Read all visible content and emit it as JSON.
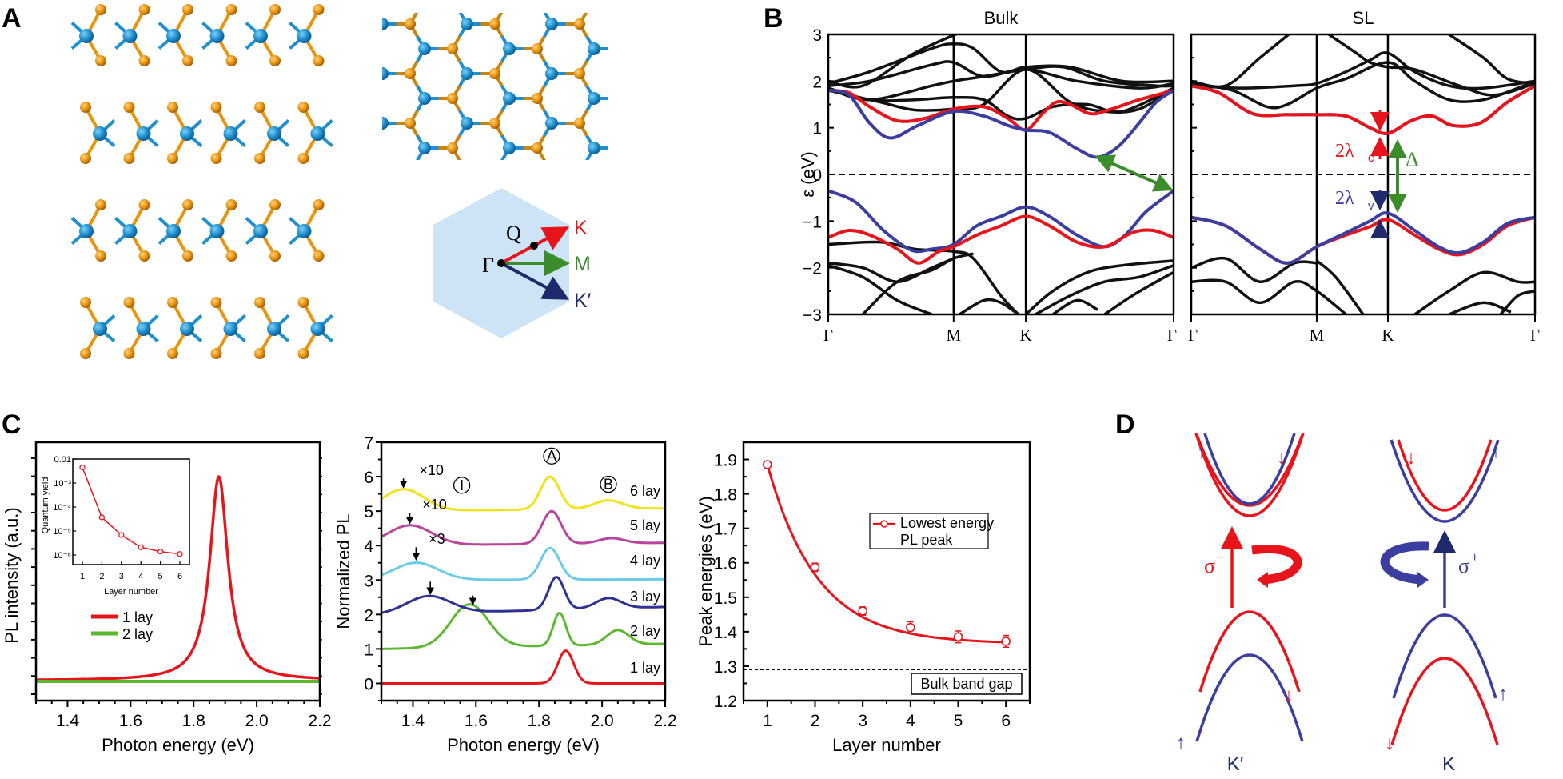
{
  "panel_labels": {
    "a": "A",
    "b": "B",
    "c": "C",
    "d": "D"
  },
  "panel_a": {
    "side_view_layers": 4,
    "colors": {
      "metal": "#1f8fcf",
      "chalcogen": "#e8940f",
      "bz_fill": "#cde3f6"
    },
    "bz": {
      "gamma": "Γ",
      "q": "Q",
      "k": "K",
      "m": "M",
      "kprime": "K′",
      "colors": {
        "k": "#e8141c",
        "m": "#3b8c2a",
        "kprime": "#1e2a6b"
      }
    }
  },
  "chart_data": [
    {
      "id": "band-bulk",
      "type": "line",
      "title": "Bulk",
      "ylabel": "ε (eV)",
      "xlabel": "",
      "ylim": [
        -3,
        3
      ],
      "yticks": [
        "3",
        "2",
        "1",
        "0",
        "−1",
        "−2",
        "−3"
      ],
      "xticks": [
        "Γ",
        "M",
        "K",
        "Γ"
      ],
      "kpath_fraction": [
        0,
        0.363,
        0.572,
        1
      ],
      "fermi_level": 0,
      "series": [
        {
          "name": "conduction-spin-red",
          "color": "#e8141c",
          "x": [
            0,
            0.06,
            0.12,
            0.2,
            0.28,
            0.363,
            0.45,
            0.52,
            0.572,
            0.62,
            0.66,
            0.7,
            0.76,
            0.82,
            0.9,
            1
          ],
          "y": [
            1.8,
            1.75,
            1.45,
            1.15,
            1.2,
            1.4,
            1.45,
            1.2,
            0.95,
            1.3,
            1.55,
            1.5,
            1.3,
            1.4,
            1.6,
            1.8
          ]
        },
        {
          "name": "conduction-spin-blue",
          "color": "#3b3ea0",
          "x": [
            0,
            0.06,
            0.12,
            0.18,
            0.26,
            0.363,
            0.45,
            0.52,
            0.572,
            0.64,
            0.72,
            0.78,
            0.84,
            0.9,
            0.95,
            1
          ],
          "y": [
            1.8,
            1.7,
            1.1,
            0.78,
            1.05,
            1.35,
            1.25,
            1.05,
            0.95,
            0.9,
            0.55,
            0.37,
            0.6,
            1.1,
            1.55,
            1.8
          ]
        },
        {
          "name": "valence-spin-blue",
          "color": "#3b3ea0",
          "x": [
            0,
            0.08,
            0.16,
            0.24,
            0.3,
            0.363,
            0.43,
            0.5,
            0.572,
            0.64,
            0.72,
            0.8,
            0.86,
            0.92,
            1
          ],
          "y": [
            -0.35,
            -0.6,
            -1.2,
            -1.62,
            -1.6,
            -1.5,
            -1.1,
            -0.9,
            -0.7,
            -0.9,
            -1.3,
            -1.55,
            -1.3,
            -0.8,
            -0.35
          ]
        },
        {
          "name": "valence-spin-red",
          "color": "#e8141c",
          "x": [
            0,
            0.06,
            0.12,
            0.2,
            0.26,
            0.32,
            0.363,
            0.43,
            0.5,
            0.572,
            0.64,
            0.72,
            0.8,
            0.88,
            0.94,
            1
          ],
          "y": [
            -1.35,
            -1.2,
            -1.3,
            -1.6,
            -1.9,
            -1.65,
            -1.55,
            -1.3,
            -1.1,
            -0.9,
            -1.1,
            -1.45,
            -1.55,
            -1.25,
            -1.2,
            -1.35
          ]
        }
      ],
      "annotation": {
        "type": "double-arrow",
        "color": "#3b8c2a",
        "from": [
          0.78,
          0.37
        ],
        "to": [
          1.0,
          -0.35
        ]
      }
    },
    {
      "id": "band-sl",
      "type": "line",
      "title": "SL",
      "ylim": [
        -3,
        3
      ],
      "xticks": [
        "Γ",
        "M",
        "K",
        "Γ"
      ],
      "kpath_fraction": [
        0,
        0.365,
        0.572,
        1
      ],
      "fermi_level": 0,
      "series": [
        {
          "name": "conduction-spin-blue",
          "color": "#3b3ea0",
          "x": [
            0,
            0.08,
            0.18,
            0.28,
            0.365,
            0.45,
            0.52,
            0.572,
            0.64,
            0.7,
            0.76,
            0.84,
            0.92,
            1
          ],
          "y": [
            1.9,
            1.75,
            1.3,
            1.28,
            1.28,
            1.25,
            1.0,
            0.88,
            1.15,
            1.25,
            1.05,
            1.1,
            1.55,
            1.9
          ]
        },
        {
          "name": "conduction-spin-red",
          "color": "#e8141c",
          "x": [
            0,
            0.08,
            0.18,
            0.28,
            0.365,
            0.45,
            0.52,
            0.572,
            0.64,
            0.7,
            0.76,
            0.84,
            0.92,
            1
          ],
          "y": [
            1.9,
            1.75,
            1.3,
            1.28,
            1.28,
            1.25,
            1.0,
            0.88,
            1.15,
            1.25,
            1.05,
            1.1,
            1.55,
            1.9
          ]
        },
        {
          "name": "valence-spin-red",
          "color": "#e8141c",
          "x": [
            0,
            0.1,
            0.2,
            0.28,
            0.365,
            0.45,
            0.52,
            0.572,
            0.65,
            0.72,
            0.78,
            0.85,
            0.92,
            1
          ],
          "y": [
            -0.92,
            -1.1,
            -1.6,
            -1.9,
            -1.55,
            -1.3,
            -1.12,
            -0.97,
            -1.3,
            -1.6,
            -1.72,
            -1.5,
            -1.1,
            -0.92
          ]
        },
        {
          "name": "valence-spin-blue",
          "color": "#3b3ea0",
          "x": [
            0,
            0.1,
            0.2,
            0.28,
            0.365,
            0.45,
            0.52,
            0.572,
            0.65,
            0.72,
            0.78,
            0.85,
            0.92,
            1
          ],
          "y": [
            -0.92,
            -1.1,
            -1.6,
            -1.9,
            -1.55,
            -1.25,
            -1.0,
            -0.83,
            -1.2,
            -1.55,
            -1.68,
            -1.45,
            -1.05,
            -0.92
          ]
        }
      ],
      "annotations": {
        "lambda_c": "2λ",
        "lambda_c_sub": "c",
        "lambda_v": "2λ",
        "lambda_v_sub": "v",
        "delta": "Δ"
      }
    },
    {
      "id": "pl-intensity",
      "type": "line",
      "xlabel": "Photon energy (eV)",
      "ylabel": "PL intensity (a.u.)",
      "xlim": [
        1.3,
        2.2
      ],
      "xticks": [
        "1.4",
        "1.6",
        "1.8",
        "2.0",
        "2.2"
      ],
      "legend": [
        {
          "label": "1 lay",
          "color": "#e8141c"
        },
        {
          "label": "2 lay",
          "color": "#5cb82e"
        }
      ],
      "series": [
        {
          "name": "1 lay",
          "color": "#e8141c",
          "peak_center": 1.88,
          "peak_height": 1.0,
          "width": 0.035
        },
        {
          "name": "2 lay",
          "color": "#5cb82e",
          "flat": 0.0
        }
      ],
      "inset": {
        "type": "scatter-line",
        "xlabel": "Layer number",
        "ylabel": "Quantum yield",
        "yscale": "log",
        "ylim": [
          1e-06,
          0.01
        ],
        "yticks": [
          "0.01",
          "10⁻³",
          "10⁻⁴",
          "10⁻⁵",
          "10⁻⁶"
        ],
        "xticks": [
          "1",
          "2",
          "3",
          "4",
          "5",
          "6"
        ],
        "x": [
          1,
          2,
          3,
          4,
          5,
          6
        ],
        "y": [
          0.0045,
          3.7e-05,
          6.8e-06,
          2.1e-06,
          1.4e-06,
          1.1e-06
        ]
      }
    },
    {
      "id": "normalized-pl",
      "type": "line",
      "xlabel": "Photon energy (eV)",
      "ylabel": "Normalized PL",
      "xlim": [
        1.3,
        2.2
      ],
      "ylim": [
        -0.5,
        7
      ],
      "yticks": [
        "0",
        "1",
        "2",
        "3",
        "4",
        "5",
        "6",
        "7"
      ],
      "xticks": [
        "1.4",
        "1.6",
        "1.8",
        "2.0",
        "2.2"
      ],
      "series": [
        {
          "name": "1 lay",
          "color": "#e8141c",
          "offset": 0,
          "peaks": [
            [
              1.885,
              0.95,
              0.025
            ]
          ],
          "baseline_end": 0
        },
        {
          "name": "2 lay",
          "color": "#5cb82e",
          "offset": 1,
          "peaks": [
            [
              1.58,
              1.25,
              0.06
            ],
            [
              1.865,
              0.95,
              0.02
            ],
            [
              2.05,
              0.42,
              0.035
            ]
          ],
          "baseline_end": 0.15
        },
        {
          "name": "3 lay",
          "color": "#2e3192",
          "offset": 2,
          "peaks": [
            [
              1.45,
              0.5,
              0.07
            ],
            [
              1.855,
              0.95,
              0.025
            ],
            [
              2.02,
              0.3,
              0.04
            ]
          ],
          "baseline_end": 0.22
        },
        {
          "name": "4 lay",
          "color": "#6ccbe6",
          "offset": 3,
          "peaks": [
            [
              1.41,
              0.5,
              0.07
            ],
            [
              1.835,
              0.92,
              0.03
            ]
          ],
          "baseline_end": 0.02
        },
        {
          "name": "5 lay",
          "color": "#b9449b",
          "offset": 4,
          "peaks": [
            [
              1.39,
              0.58,
              0.07
            ],
            [
              1.84,
              0.95,
              0.03
            ],
            [
              2.03,
              0.15,
              0.04
            ]
          ],
          "baseline_end": 0.08
        },
        {
          "name": "6 lay",
          "color": "#f2e21a",
          "offset": 5,
          "peaks": [
            [
              1.37,
              0.63,
              0.065
            ],
            [
              1.835,
              0.95,
              0.03
            ],
            [
              2.02,
              0.25,
              0.045
            ]
          ],
          "baseline_end": 0.08
        }
      ],
      "labels": [
        "1 lay",
        "2 lay",
        "3 lay",
        "4 lay",
        "5 lay",
        "6 lay"
      ],
      "annotations": {
        "x10_a": "×10",
        "x10_b": "×10",
        "x3": "×3",
        "circle_i": "I",
        "circle_a": "A",
        "circle_b": "B"
      }
    },
    {
      "id": "peak-energies",
      "type": "scatter",
      "xlabel": "Layer number",
      "ylabel": "Peak energies (eV)",
      "xlim": [
        0.5,
        6.5
      ],
      "ylim": [
        1.2,
        1.95
      ],
      "yticks": [
        "1.2",
        "1.3",
        "1.4",
        "1.5",
        "1.6",
        "1.7",
        "1.8",
        "1.9"
      ],
      "xticks": [
        "1",
        "2",
        "3",
        "4",
        "5",
        "6"
      ],
      "x": [
        1,
        2,
        3,
        4,
        5,
        6
      ],
      "y": [
        1.885,
        1.587,
        1.46,
        1.412,
        1.385,
        1.372
      ],
      "yerr": [
        0.005,
        0.012,
        0.012,
        0.017,
        0.017,
        0.017
      ],
      "color": "#e8141c",
      "legend": {
        "line1": "Lowest energy",
        "line2": "PL peak"
      },
      "reference_line": {
        "y": 1.29,
        "label": "Bulk band gap"
      }
    }
  ],
  "panel_d": {
    "left_valley": "K′",
    "right_valley": "K",
    "sigma_minus": "σ",
    "sigma_minus_sup": "−",
    "sigma_plus": "σ",
    "sigma_plus_sup": "+",
    "spin_up": "↑",
    "spin_down": "↓",
    "colors": {
      "red": "#e8141c",
      "blue": "#3b3ea0"
    }
  }
}
